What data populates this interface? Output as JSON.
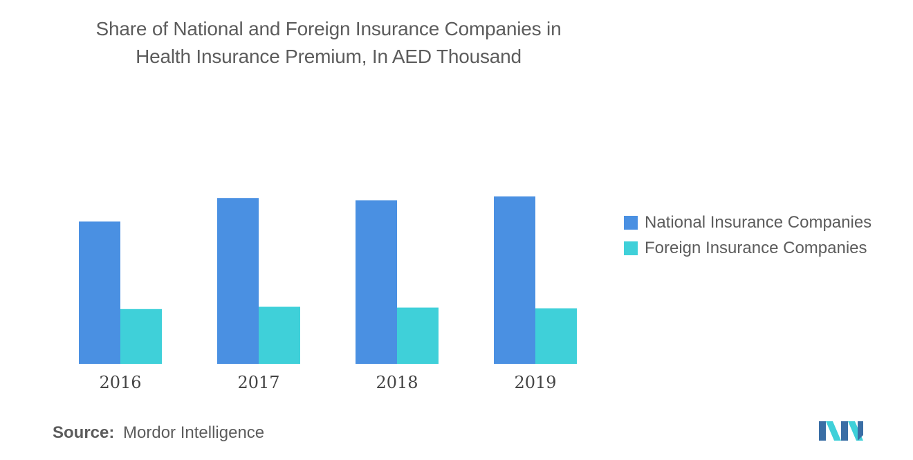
{
  "header": {
    "title_line1": "Share of National and Foreign Insurance Companies in",
    "title_line2": "Health Insurance Premium, In AED Thousand"
  },
  "chart_data": {
    "type": "bar",
    "title": "Share of National and Foreign Insurance Companies in Health Insurance Premium, In AED Thousand",
    "categories": [
      "2016",
      "2017",
      "2018",
      "2019"
    ],
    "series": [
      {
        "name": "National Insurance Companies",
        "values": [
          187,
          218,
          215,
          220
        ],
        "color": "#4a90e2"
      },
      {
        "name": "Foreign Insurance Companies",
        "values": [
          72,
          75,
          74,
          73
        ],
        "color": "#3fd0d9"
      }
    ],
    "ylim": [
      0,
      260
    ],
    "grid": false,
    "y_axis_shown": false,
    "legend_position": "right"
  },
  "footer": {
    "source_label": "Source:",
    "source_value": "Mordor Intelligence"
  },
  "logo": {
    "name": "mordor-intelligence-logo",
    "colors": [
      "#3a6ea5",
      "#3fd0d9"
    ]
  }
}
